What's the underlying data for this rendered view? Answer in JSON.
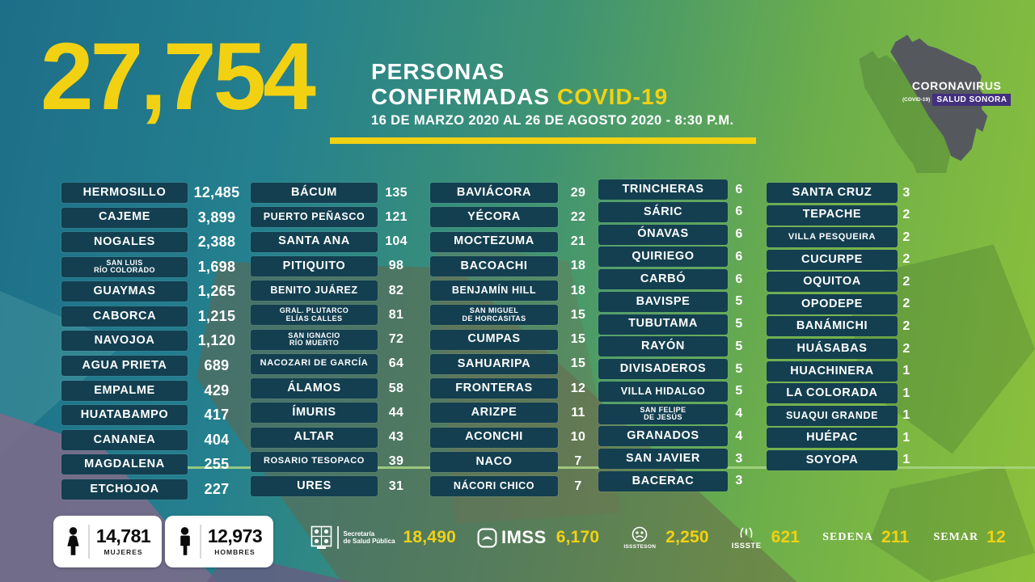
{
  "header": {
    "total": "27,754",
    "title_line1": "PERSONAS",
    "title_line2": "CONFIRMADAS",
    "title_highlight": "COVID-19",
    "date_range": "16 DE MARZO 2020 AL 26 DE AGOSTO 2020 - 8:30 P.M."
  },
  "map_badge": {
    "title": "CORONAVIRUS",
    "subtitle": "(COVID-19)",
    "label": "SALUD SONORA"
  },
  "columns": [
    {
      "rows": [
        {
          "name": "HERMOSILLO",
          "value": "12,485"
        },
        {
          "name": "CAJEME",
          "value": "3,899"
        },
        {
          "name": "NOGALES",
          "value": "2,388"
        },
        {
          "name": "SAN LUIS\nRÍO COLORADO",
          "value": "1,698"
        },
        {
          "name": "GUAYMAS",
          "value": "1,265"
        },
        {
          "name": "CABORCA",
          "value": "1,215"
        },
        {
          "name": "NAVOJOA",
          "value": "1,120"
        },
        {
          "name": "AGUA PRIETA",
          "value": "689"
        },
        {
          "name": "EMPALME",
          "value": "429"
        },
        {
          "name": "HUATABAMPO",
          "value": "417"
        },
        {
          "name": "CANANEA",
          "value": "404"
        },
        {
          "name": "MAGDALENA",
          "value": "255"
        },
        {
          "name": "ETCHOJOA",
          "value": "227"
        }
      ]
    },
    {
      "rows": [
        {
          "name": "BÁCUM",
          "value": "135"
        },
        {
          "name": "PUERTO PEÑASCO",
          "value": "121"
        },
        {
          "name": "SANTA ANA",
          "value": "104"
        },
        {
          "name": "PITIQUITO",
          "value": "98"
        },
        {
          "name": "BENITO JUÁREZ",
          "value": "82"
        },
        {
          "name": "GRAL. PLUTARCO\nELÍAS CALLES",
          "value": "81"
        },
        {
          "name": "SAN IGNACIO\nRÍO MUERTO",
          "value": "72"
        },
        {
          "name": "NACOZARI DE GARCÍA",
          "value": "64"
        },
        {
          "name": "ÁLAMOS",
          "value": "58"
        },
        {
          "name": "ÍMURIS",
          "value": "44"
        },
        {
          "name": "ALTAR",
          "value": "43"
        },
        {
          "name": "ROSARIO TESOPACO",
          "value": "39"
        },
        {
          "name": "URES",
          "value": "31"
        }
      ]
    },
    {
      "rows": [
        {
          "name": "BAVIÁCORA",
          "value": "29"
        },
        {
          "name": "YÉCORA",
          "value": "22"
        },
        {
          "name": "MOCTEZUMA",
          "value": "21"
        },
        {
          "name": "BACOACHI",
          "value": "18"
        },
        {
          "name": "BENJAMÍN HILL",
          "value": "18"
        },
        {
          "name": "SAN MIGUEL\nDE HORCASITAS",
          "value": "15"
        },
        {
          "name": "CUMPAS",
          "value": "15"
        },
        {
          "name": "SAHUARIPA",
          "value": "15"
        },
        {
          "name": "FRONTERAS",
          "value": "12"
        },
        {
          "name": "ARIZPE",
          "value": "11"
        },
        {
          "name": "ACONCHI",
          "value": "10"
        },
        {
          "name": "NACO",
          "value": "7"
        },
        {
          "name": "NÁCORI CHICO",
          "value": "7"
        }
      ]
    },
    {
      "rows": [
        {
          "name": "TRINCHERAS",
          "value": "6"
        },
        {
          "name": "SÁRIC",
          "value": "6"
        },
        {
          "name": "ÓNAVAS",
          "value": "6"
        },
        {
          "name": "QUIRIEGO",
          "value": "6"
        },
        {
          "name": "CARBÓ",
          "value": "6"
        },
        {
          "name": "BAVISPE",
          "value": "5"
        },
        {
          "name": "TUBUTAMA",
          "value": "5"
        },
        {
          "name": "RAYÓN",
          "value": "5"
        },
        {
          "name": "DIVISADEROS",
          "value": "5"
        },
        {
          "name": "VILLA HIDALGO",
          "value": "5"
        },
        {
          "name": "SAN FELIPE\nDE JESÚS",
          "value": "4"
        },
        {
          "name": "GRANADOS",
          "value": "4"
        },
        {
          "name": "SAN JAVIER",
          "value": "3"
        },
        {
          "name": "BACERAC",
          "value": "3"
        }
      ]
    },
    {
      "rows": [
        {
          "name": "SANTA CRUZ",
          "value": "3"
        },
        {
          "name": "TEPACHE",
          "value": "2"
        },
        {
          "name": "VILLA PESQUEIRA",
          "value": "2"
        },
        {
          "name": "CUCURPE",
          "value": "2"
        },
        {
          "name": "OQUITOA",
          "value": "2"
        },
        {
          "name": "OPODEPE",
          "value": "2"
        },
        {
          "name": "BANÁMICHI",
          "value": "2"
        },
        {
          "name": "HUÁSABAS",
          "value": "2"
        },
        {
          "name": "HUACHINERA",
          "value": "1"
        },
        {
          "name": "LA COLORADA",
          "value": "1"
        },
        {
          "name": "SUAQUI GRANDE",
          "value": "1"
        },
        {
          "name": "HUÉPAC",
          "value": "1"
        },
        {
          "name": "SOYOPA",
          "value": "1"
        }
      ]
    }
  ],
  "footer": {
    "gender": [
      {
        "value": "14,781",
        "label": "MUJERES"
      },
      {
        "value": "12,973",
        "label": "HOMBRES"
      }
    ],
    "institutions": [
      {
        "name": "Secretaría\nde Salud Pública",
        "value": "18,490"
      },
      {
        "name": "IMSS",
        "value": "6,170"
      },
      {
        "name": "ISSSTESON",
        "value": "2,250"
      },
      {
        "name": "ISSSTE",
        "value": "621"
      },
      {
        "name": "SEDENA",
        "value": "211"
      },
      {
        "name": "SEMAR",
        "value": "12"
      }
    ]
  },
  "colors": {
    "accent_yellow": "#F2D113",
    "pill_teal": "#133F50",
    "badge_purple": "#43307E",
    "line_green": "#A8D584",
    "bg_teal": "#1D6E88",
    "bg_green": "#8CC13A",
    "map_gray": "#55595E"
  },
  "chart_data": {
    "type": "table",
    "title": "PERSONAS CONFIRMADAS COVID-19",
    "subtitle": "16 DE MARZO 2020 AL 26 DE AGOSTO 2020 - 8:30 P.M.",
    "total_confirmed": 27754,
    "municipalities": [
      {
        "name": "HERMOSILLO",
        "cases": 12485
      },
      {
        "name": "CAJEME",
        "cases": 3899
      },
      {
        "name": "NOGALES",
        "cases": 2388
      },
      {
        "name": "SAN LUIS RÍO COLORADO",
        "cases": 1698
      },
      {
        "name": "GUAYMAS",
        "cases": 1265
      },
      {
        "name": "CABORCA",
        "cases": 1215
      },
      {
        "name": "NAVOJOA",
        "cases": 1120
      },
      {
        "name": "AGUA PRIETA",
        "cases": 689
      },
      {
        "name": "EMPALME",
        "cases": 429
      },
      {
        "name": "HUATABAMPO",
        "cases": 417
      },
      {
        "name": "CANANEA",
        "cases": 404
      },
      {
        "name": "MAGDALENA",
        "cases": 255
      },
      {
        "name": "ETCHOJOA",
        "cases": 227
      },
      {
        "name": "BÁCUM",
        "cases": 135
      },
      {
        "name": "PUERTO PEÑASCO",
        "cases": 121
      },
      {
        "name": "SANTA ANA",
        "cases": 104
      },
      {
        "name": "PITIQUITO",
        "cases": 98
      },
      {
        "name": "BENITO JUÁREZ",
        "cases": 82
      },
      {
        "name": "GRAL. PLUTARCO ELÍAS CALLES",
        "cases": 81
      },
      {
        "name": "SAN IGNACIO RÍO MUERTO",
        "cases": 72
      },
      {
        "name": "NACOZARI DE GARCÍA",
        "cases": 64
      },
      {
        "name": "ÁLAMOS",
        "cases": 58
      },
      {
        "name": "ÍMURIS",
        "cases": 44
      },
      {
        "name": "ALTAR",
        "cases": 43
      },
      {
        "name": "ROSARIO TESOPACO",
        "cases": 39
      },
      {
        "name": "URES",
        "cases": 31
      },
      {
        "name": "BAVIÁCORA",
        "cases": 29
      },
      {
        "name": "YÉCORA",
        "cases": 22
      },
      {
        "name": "MOCTEZUMA",
        "cases": 21
      },
      {
        "name": "BACOACHI",
        "cases": 18
      },
      {
        "name": "BENJAMÍN HILL",
        "cases": 18
      },
      {
        "name": "SAN MIGUEL DE HORCASITAS",
        "cases": 15
      },
      {
        "name": "CUMPAS",
        "cases": 15
      },
      {
        "name": "SAHUARIPA",
        "cases": 15
      },
      {
        "name": "FRONTERAS",
        "cases": 12
      },
      {
        "name": "ARIZPE",
        "cases": 11
      },
      {
        "name": "ACONCHI",
        "cases": 10
      },
      {
        "name": "NACO",
        "cases": 7
      },
      {
        "name": "NÁCORI CHICO",
        "cases": 7
      },
      {
        "name": "TRINCHERAS",
        "cases": 6
      },
      {
        "name": "SÁRIC",
        "cases": 6
      },
      {
        "name": "ÓNAVAS",
        "cases": 6
      },
      {
        "name": "QUIRIEGO",
        "cases": 6
      },
      {
        "name": "CARBÓ",
        "cases": 6
      },
      {
        "name": "BAVISPE",
        "cases": 5
      },
      {
        "name": "TUBUTAMA",
        "cases": 5
      },
      {
        "name": "RAYÓN",
        "cases": 5
      },
      {
        "name": "DIVISADEROS",
        "cases": 5
      },
      {
        "name": "VILLA HIDALGO",
        "cases": 5
      },
      {
        "name": "SAN FELIPE DE JESÚS",
        "cases": 4
      },
      {
        "name": "GRANADOS",
        "cases": 4
      },
      {
        "name": "SAN JAVIER",
        "cases": 3
      },
      {
        "name": "BACERAC",
        "cases": 3
      },
      {
        "name": "SANTA CRUZ",
        "cases": 3
      },
      {
        "name": "TEPACHE",
        "cases": 2
      },
      {
        "name": "VILLA PESQUEIRA",
        "cases": 2
      },
      {
        "name": "CUCURPE",
        "cases": 2
      },
      {
        "name": "OQUITOA",
        "cases": 2
      },
      {
        "name": "OPODEPE",
        "cases": 2
      },
      {
        "name": "BANÁMICHI",
        "cases": 2
      },
      {
        "name": "HUÁSABAS",
        "cases": 2
      },
      {
        "name": "HUACHINERA",
        "cases": 1
      },
      {
        "name": "LA COLORADA",
        "cases": 1
      },
      {
        "name": "SUAQUI GRANDE",
        "cases": 1
      },
      {
        "name": "HUÉPAC",
        "cases": 1
      },
      {
        "name": "SOYOPA",
        "cases": 1
      }
    ],
    "by_gender": {
      "MUJERES": 14781,
      "HOMBRES": 12973
    },
    "by_institution": {
      "SECRETARÍA DE SALUD PÚBLICA": 18490,
      "IMSS": 6170,
      "ISSSTESON": 2250,
      "ISSSTE": 621,
      "SEDENA": 211,
      "SEMAR": 12
    }
  }
}
